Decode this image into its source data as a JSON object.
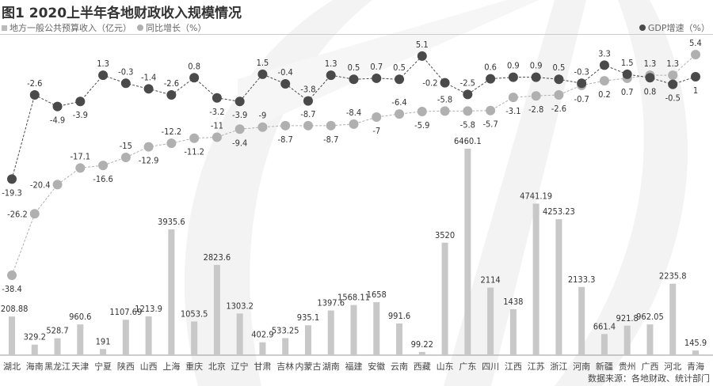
{
  "chart_data": {
    "type": "bar+line",
    "title": "图1 2020上半年各地财政收入规模情况",
    "legend": {
      "bars": "地方一般公共预算收入（亿元）",
      "revenue_growth": "同比增长（%）",
      "gdp": "GDP增速（%）",
      "placement": "top"
    },
    "categories": [
      "湖北",
      "海南",
      "黑龙江",
      "天津",
      "宁夏",
      "陕西",
      "山西",
      "上海",
      "重庆",
      "北京",
      "辽宁",
      "甘肃",
      "吉林",
      "内蒙古",
      "湖南",
      "福建",
      "安徽",
      "云南",
      "西藏",
      "山东",
      "广东",
      "四川",
      "江西",
      "江苏",
      "浙江",
      "河南",
      "新疆",
      "贵州",
      "广西",
      "河北",
      "青海"
    ],
    "series": [
      {
        "name": "地方一般公共预算收入（亿元）",
        "type": "bar",
        "color": "#c8c8c8",
        "values": [
          1208.88,
          329.2,
          528.7,
          960.6,
          191,
          1107.69,
          1213.9,
          3935.6,
          1053.5,
          2823.6,
          1303.2,
          402.9,
          533.25,
          935.1,
          1397.6,
          1568.11,
          1658,
          991.6,
          99.22,
          3520,
          6460.1,
          2114,
          1438,
          4741.19,
          4253.23,
          2133.3,
          661.4,
          921.8,
          962.05,
          2235.8,
          145.9
        ]
      },
      {
        "name": "同比增长（%）",
        "type": "line",
        "color": "#b0b0b0",
        "values": [
          -38.4,
          -26.2,
          -20.4,
          -17.1,
          -16.6,
          -15,
          -12.9,
          -12.2,
          -11.2,
          -11,
          -9.4,
          -9,
          -8.7,
          -8.7,
          -8.7,
          -8.4,
          -7,
          -6.4,
          -5.9,
          -5.8,
          -5.8,
          -5.7,
          -3.1,
          -2.8,
          -2.6,
          -0.7,
          0.2,
          0.7,
          1.3,
          1.3,
          5.4
        ]
      },
      {
        "name": "GDP增速（%）",
        "type": "line",
        "color": "#4a4a4a",
        "values": [
          -19.3,
          -2.6,
          -4.9,
          -3.9,
          1.3,
          -0.3,
          -1.4,
          -2.6,
          0.8,
          -3.2,
          -3.9,
          1.5,
          -0.4,
          -3.8,
          1.3,
          0.5,
          0.7,
          0.5,
          5.1,
          -0.2,
          -2.5,
          0.6,
          0.9,
          0.9,
          0.5,
          -0.3,
          3.3,
          1.5,
          0.8,
          -0.5,
          1
        ]
      }
    ],
    "grid": false,
    "source": "数据来源：各地财政、统计部门"
  }
}
